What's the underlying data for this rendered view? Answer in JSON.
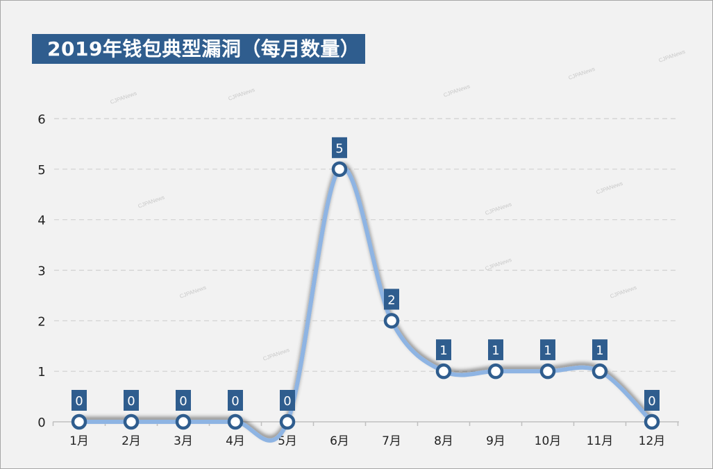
{
  "chart_data": {
    "type": "line",
    "title": "2019年钱包典型漏洞（每月数量）",
    "categories": [
      "1月",
      "2月",
      "3月",
      "4月",
      "5月",
      "6月",
      "7月",
      "8月",
      "9月",
      "10月",
      "11月",
      "12月"
    ],
    "values": [
      0,
      0,
      0,
      0,
      0,
      5,
      2,
      1,
      1,
      1,
      1,
      0
    ],
    "ylim": [
      0,
      6
    ],
    "yticks": [
      0,
      1,
      2,
      3,
      4,
      5,
      6
    ],
    "grid": true,
    "smooth": true,
    "data_labels": true,
    "colors": {
      "line": "#8eb4e3",
      "marker": "#2f5d8e",
      "label_bg": "#2f5d8e",
      "title_bg": "#2f5d8e",
      "grid": "#d0d0d0"
    }
  },
  "watermark": "CJPANews"
}
